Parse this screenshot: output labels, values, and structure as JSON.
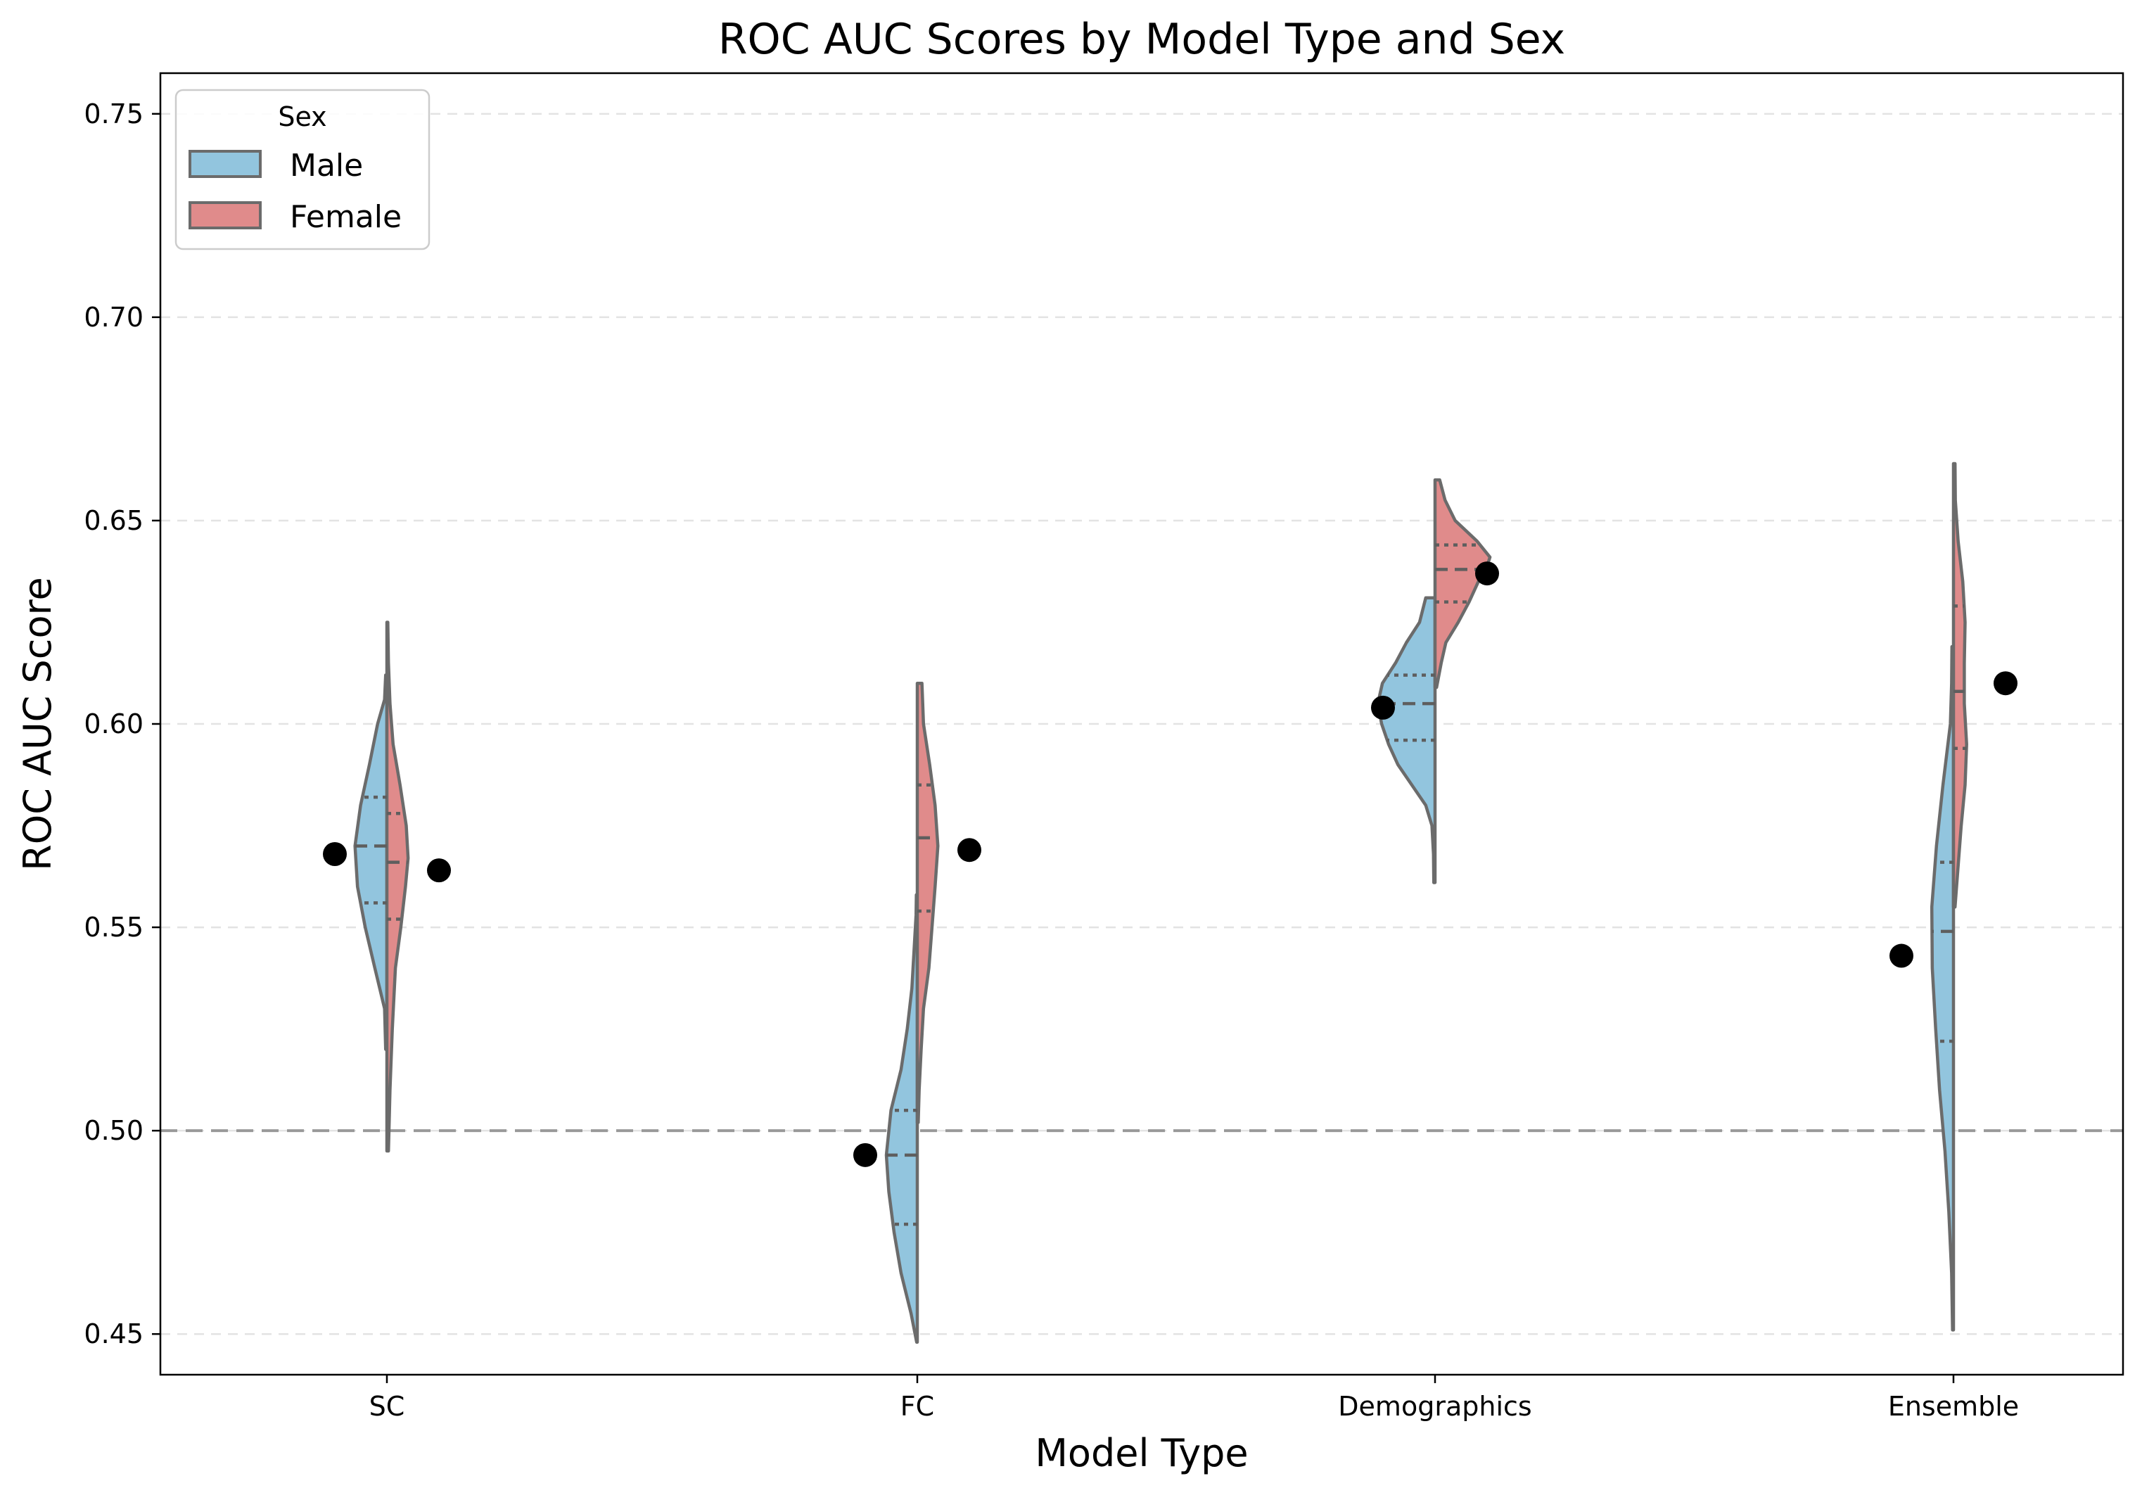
{
  "chart_data": {
    "type": "violin",
    "title": "ROC AUC Scores by Model Type and Sex",
    "xlabel": "Model Type",
    "ylabel": "ROC AUC Score",
    "ylim": [
      0.44,
      0.76
    ],
    "yticks": [
      0.45,
      0.5,
      0.55,
      0.6,
      0.65,
      0.7,
      0.75
    ],
    "ytick_labels": [
      "0.45",
      "0.50",
      "0.55",
      "0.60",
      "0.65",
      "0.70",
      "0.75"
    ],
    "categories": [
      "SC",
      "FC",
      "Demographics",
      "Ensemble"
    ],
    "grid": "horizontal-dashed",
    "reference_line": {
      "y": 0.5,
      "style": "dashed",
      "color": "#999999"
    },
    "legend": {
      "title": "Sex",
      "position": "top-left",
      "entries": [
        {
          "label": "Male",
          "color": "#92c5de"
        },
        {
          "label": "Female",
          "color": "#e08b8b"
        }
      ]
    },
    "colors": {
      "Male": "#92c5de",
      "Female": "#e08b8b",
      "outline": "#6b6b6b",
      "mean_marker": "#000000"
    },
    "series": [
      {
        "name": "Male",
        "side": "left",
        "violins": [
          {
            "category": "SC",
            "min": 0.52,
            "max": 0.612,
            "q1": 0.556,
            "median": 0.57,
            "q3": 0.582,
            "mean": 0.568,
            "profile": [
              [
                0.52,
                0.008
              ],
              [
                0.53,
                0.015
              ],
              [
                0.54,
                0.078
              ],
              [
                0.55,
                0.14
              ],
              [
                0.56,
                0.19
              ],
              [
                0.57,
                0.206
              ],
              [
                0.58,
                0.17
              ],
              [
                0.59,
                0.113
              ],
              [
                0.6,
                0.06
              ],
              [
                0.606,
                0.015
              ],
              [
                0.612,
                0.008
              ]
            ]
          },
          {
            "category": "FC",
            "min": 0.448,
            "max": 0.558,
            "q1": 0.477,
            "median": 0.494,
            "q3": 0.505,
            "mean": 0.494,
            "profile": [
              [
                0.448,
                0.004
              ],
              [
                0.455,
                0.04
              ],
              [
                0.465,
                0.105
              ],
              [
                0.475,
                0.15
              ],
              [
                0.485,
                0.184
              ],
              [
                0.494,
                0.2
              ],
              [
                0.505,
                0.17
              ],
              [
                0.515,
                0.105
              ],
              [
                0.525,
                0.065
              ],
              [
                0.535,
                0.035
              ],
              [
                0.545,
                0.02
              ],
              [
                0.553,
                0.008
              ],
              [
                0.558,
                0.006
              ]
            ]
          },
          {
            "category": "Demographics",
            "min": 0.561,
            "max": 0.631,
            "q1": 0.596,
            "median": 0.605,
            "q3": 0.612,
            "mean": 0.604,
            "profile": [
              [
                0.561,
                0.008
              ],
              [
                0.568,
                0.01
              ],
              [
                0.575,
                0.02
              ],
              [
                0.58,
                0.06
              ],
              [
                0.585,
                0.15
              ],
              [
                0.59,
                0.24
              ],
              [
                0.595,
                0.3
              ],
              [
                0.6,
                0.345
              ],
              [
                0.605,
                0.37
              ],
              [
                0.61,
                0.34
              ],
              [
                0.615,
                0.255
              ],
              [
                0.62,
                0.185
              ],
              [
                0.625,
                0.1
              ],
              [
                0.631,
                0.06
              ]
            ]
          },
          {
            "category": "Ensemble",
            "min": 0.451,
            "max": 0.619,
            "q1": 0.522,
            "median": 0.549,
            "q3": 0.566,
            "mean": 0.543,
            "profile": [
              [
                0.451,
                0.006
              ],
              [
                0.465,
                0.012
              ],
              [
                0.48,
                0.03
              ],
              [
                0.495,
                0.055
              ],
              [
                0.51,
                0.09
              ],
              [
                0.525,
                0.115
              ],
              [
                0.54,
                0.137
              ],
              [
                0.555,
                0.14
              ],
              [
                0.57,
                0.11
              ],
              [
                0.585,
                0.068
              ],
              [
                0.6,
                0.02
              ],
              [
                0.61,
                0.012
              ],
              [
                0.619,
                0.01
              ]
            ]
          }
        ]
      },
      {
        "name": "Female",
        "side": "right",
        "violins": [
          {
            "category": "SC",
            "min": 0.495,
            "max": 0.625,
            "q1": 0.552,
            "median": 0.566,
            "q3": 0.578,
            "mean": 0.564,
            "profile": [
              [
                0.495,
                0.01
              ],
              [
                0.51,
                0.02
              ],
              [
                0.525,
                0.035
              ],
              [
                0.54,
                0.055
              ],
              [
                0.55,
                0.09
              ],
              [
                0.56,
                0.12
              ],
              [
                0.567,
                0.137
              ],
              [
                0.575,
                0.125
              ],
              [
                0.585,
                0.085
              ],
              [
                0.595,
                0.04
              ],
              [
                0.605,
                0.02
              ],
              [
                0.615,
                0.01
              ],
              [
                0.625,
                0.006
              ]
            ]
          },
          {
            "category": "FC",
            "min": 0.502,
            "max": 0.61,
            "q1": 0.554,
            "median": 0.572,
            "q3": 0.585,
            "mean": 0.569,
            "profile": [
              [
                0.502,
                0.006
              ],
              [
                0.51,
                0.012
              ],
              [
                0.52,
                0.025
              ],
              [
                0.53,
                0.04
              ],
              [
                0.54,
                0.075
              ],
              [
                0.55,
                0.095
              ],
              [
                0.56,
                0.115
              ],
              [
                0.57,
                0.133
              ],
              [
                0.58,
                0.115
              ],
              [
                0.59,
                0.08
              ],
              [
                0.6,
                0.04
              ],
              [
                0.61,
                0.03
              ]
            ]
          },
          {
            "category": "Demographics",
            "min": 0.609,
            "max": 0.66,
            "q1": 0.63,
            "median": 0.638,
            "q3": 0.644,
            "mean": 0.637,
            "profile": [
              [
                0.609,
                0.01
              ],
              [
                0.615,
                0.04
              ],
              [
                0.62,
                0.07
              ],
              [
                0.625,
                0.15
              ],
              [
                0.63,
                0.22
              ],
              [
                0.635,
                0.28
              ],
              [
                0.638,
                0.33
              ],
              [
                0.641,
                0.355
              ],
              [
                0.645,
                0.27
              ],
              [
                0.65,
                0.13
              ],
              [
                0.655,
                0.065
              ],
              [
                0.66,
                0.03
              ]
            ]
          },
          {
            "category": "Ensemble",
            "min": 0.555,
            "max": 0.664,
            "q1": 0.594,
            "median": 0.608,
            "q3": 0.629,
            "mean": 0.61,
            "profile": [
              [
                0.555,
                0.01
              ],
              [
                0.565,
                0.03
              ],
              [
                0.575,
                0.05
              ],
              [
                0.585,
                0.075
              ],
              [
                0.595,
                0.085
              ],
              [
                0.605,
                0.07
              ],
              [
                0.615,
                0.07
              ],
              [
                0.625,
                0.075
              ],
              [
                0.635,
                0.06
              ],
              [
                0.645,
                0.03
              ],
              [
                0.655,
                0.012
              ],
              [
                0.664,
                0.01
              ]
            ]
          }
        ]
      }
    ]
  }
}
